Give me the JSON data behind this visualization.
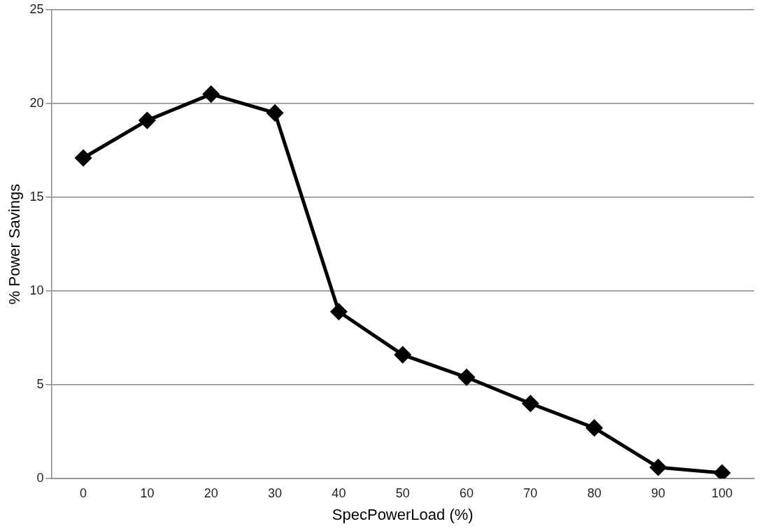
{
  "chart_data": {
    "type": "line",
    "xlabel": "SpecPowerLoad (%)",
    "ylabel": "% Power Savings",
    "categories": [
      "0",
      "10",
      "20",
      "30",
      "40",
      "50",
      "60",
      "70",
      "80",
      "90",
      "100"
    ],
    "series": [
      {
        "color": "#000000",
        "values": [
          17.1,
          19.1,
          20.5,
          19.5,
          8.9,
          6.6,
          5.4,
          4.0,
          2.7,
          0.6,
          0.3
        ]
      }
    ],
    "ylim": [
      0,
      25
    ],
    "yticks": [
      0,
      5,
      10,
      15,
      20,
      25
    ],
    "grid": "y",
    "legend": false,
    "marker": "diamond",
    "line_style": "solid"
  }
}
